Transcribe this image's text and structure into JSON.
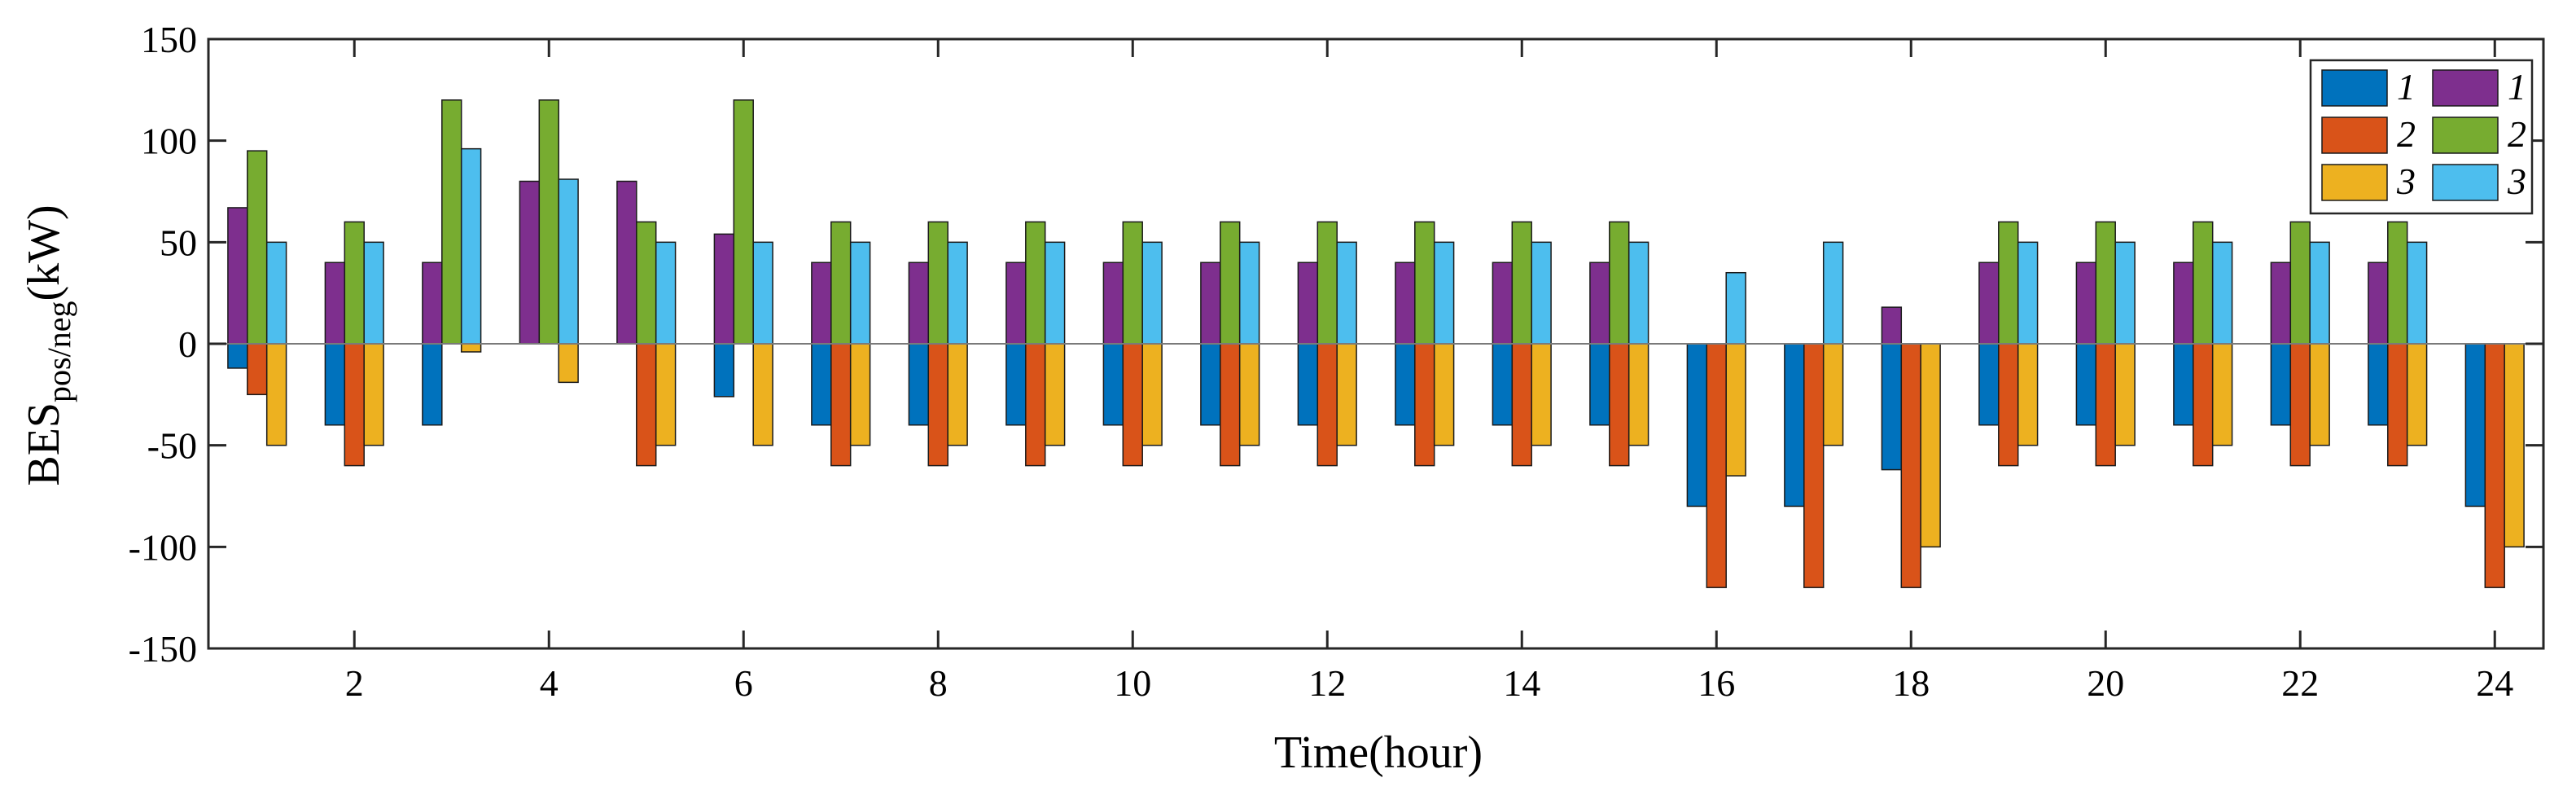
{
  "chart_data": {
    "type": "bar",
    "xlabel": "Time(hour)",
    "ylabel": {
      "main": "BES",
      "subscript": "pos/neg",
      "unit": "(kW)"
    },
    "ylim": [
      -150,
      150
    ],
    "yticks": [
      -150,
      -100,
      -50,
      0,
      50,
      100,
      150
    ],
    "xlim": [
      0.5,
      24.5
    ],
    "xticks": [
      2,
      4,
      6,
      8,
      10,
      12,
      14,
      16,
      18,
      20,
      22,
      24
    ],
    "grid": false,
    "legend_position": "top-right",
    "categories": [
      1,
      2,
      3,
      4,
      5,
      6,
      7,
      8,
      9,
      10,
      11,
      12,
      13,
      14,
      15,
      16,
      17,
      18,
      19,
      20,
      21,
      22,
      23,
      24
    ],
    "series": [
      {
        "name": "1",
        "color": "#0072BD",
        "values": [
          -12,
          -40,
          -40,
          0,
          0,
          -26,
          -40,
          -40,
          -40,
          -40,
          -40,
          -40,
          -40,
          -40,
          -40,
          -80,
          -80,
          -62,
          -40,
          -40,
          -40,
          -40,
          -40,
          -80
        ]
      },
      {
        "name": "2",
        "color": "#D95319",
        "values": [
          -25,
          -60,
          0,
          0,
          -60,
          0,
          -60,
          -60,
          -60,
          -60,
          -60,
          -60,
          -60,
          -60,
          -60,
          -120,
          -120,
          -120,
          -60,
          -60,
          -60,
          -60,
          -60,
          -120
        ]
      },
      {
        "name": "3",
        "color": "#EDB120",
        "values": [
          -50,
          -50,
          -4,
          -19,
          -50,
          -50,
          -50,
          -50,
          -50,
          -50,
          -50,
          -50,
          -50,
          -50,
          -50,
          -65,
          -50,
          -100,
          -50,
          -50,
          -50,
          -50,
          -50,
          -100
        ]
      },
      {
        "name": "1",
        "color": "#7E2F8E",
        "values": [
          67,
          40,
          40,
          80,
          80,
          54,
          40,
          40,
          40,
          40,
          40,
          40,
          40,
          40,
          40,
          0,
          0,
          18,
          40,
          40,
          40,
          40,
          40,
          0
        ]
      },
      {
        "name": "2",
        "color": "#77AC30",
        "values": [
          95,
          60,
          120,
          120,
          60,
          120,
          60,
          60,
          60,
          60,
          60,
          60,
          60,
          60,
          60,
          0,
          0,
          0,
          60,
          60,
          60,
          60,
          60,
          0
        ]
      },
      {
        "name": "3",
        "color": "#4DBEEE",
        "values": [
          50,
          50,
          96,
          81,
          50,
          50,
          50,
          50,
          50,
          50,
          50,
          50,
          50,
          50,
          50,
          35,
          50,
          0,
          50,
          50,
          50,
          50,
          50,
          0
        ]
      }
    ],
    "legend_order": [
      0,
      3,
      1,
      4,
      2,
      5
    ]
  }
}
